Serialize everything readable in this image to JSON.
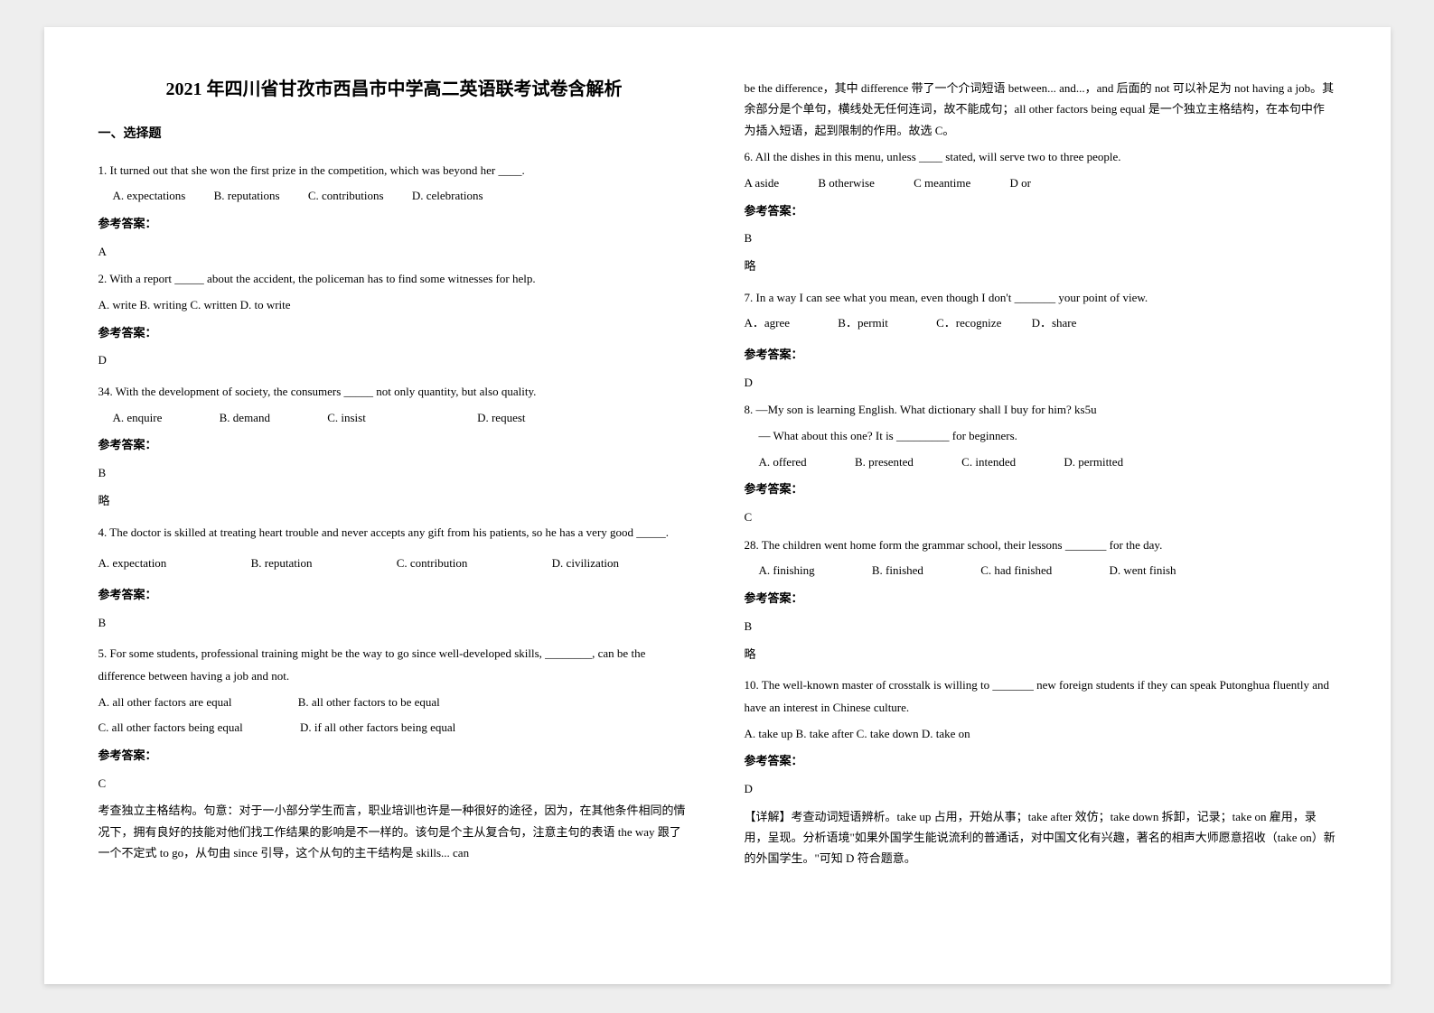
{
  "title": "2021 年四川省甘孜市西昌市中学高二英语联考试卷含解析",
  "section1": "一、选择题",
  "q1": {
    "text": "1. It turned out that she won the first prize in the competition, which was beyond her ____.",
    "A": "A. expectations",
    "B": "B. reputations",
    "C": "C. contributions",
    "D": "D. celebrations",
    "ref": "参考答案：",
    "ans": "A"
  },
  "q2": {
    "text": "2. With a report _____ about the accident, the policeman has to find some witnesses for help.",
    "opts": "A. write   B. writing   C. written   D. to write",
    "ref": "参考答案：",
    "ans": "D"
  },
  "q3": {
    "text": "34. With the development of society, the consumers _____ not only quantity, but also quality.",
    "A": "A. enquire",
    "B": "B. demand",
    "C": "C. insist",
    "D": "D. request",
    "ref": "参考答案：",
    "ans": "B",
    "note": "略"
  },
  "q4": {
    "text": "4. The doctor is skilled at treating heart trouble and never accepts any gift from his patients, so he has a very good _____.",
    "A": "A. expectation",
    "B": "B. reputation",
    "C": "C. contribution",
    "D": "D. civilization",
    "ref": "参考答案：",
    "ans": "B"
  },
  "q5": {
    "text": "5. For some students, professional training might be the way to go since well-developed skills, ________, can be the difference between having a job and not.",
    "A": "A. all other factors are equal",
    "B": "B. all other factors to be equal",
    "C": "C. all other factors being equal",
    "D": "D. if all other factors being equal",
    "ref": "参考答案：",
    "ans": "C",
    "exp": "考查独立主格结构。句意：对于一小部分学生而言，职业培训也许是一种很好的途径，因为，在其他条件相同的情况下，拥有良好的技能对他们找工作结果的影响是不一样的。该句是个主从复合句，注意主句的表语 the way 跟了一个不定式 to go，从句由 since 引导，这个从句的主干结构是 skills... can"
  },
  "col2top": "be the difference，其中 difference 带了一个介词短语 between... and...，and 后面的 not 可以补足为 not having a job。其余部分是个单句，横线处无任何连词，故不能成句；all other factors being equal 是一个独立主格结构，在本句中作为插入短语，起到限制的作用。故选 C。",
  "q6": {
    "text": "6. All the dishes in this menu, unless ____ stated, will serve two to three people.",
    "A": "A aside",
    "B": "B otherwise",
    "C": "C meantime",
    "D": "D or",
    "ref": "参考答案：",
    "ans": "B",
    "note": "略"
  },
  "q7": {
    "text": "7. In a way I can see what you mean, even though I don't _______ your point of view.",
    "A": "A．agree",
    "B": "B．permit",
    "C": "C．recognize",
    "D": "D．share",
    "ref": "参考答案：",
    "ans": "D"
  },
  "q8": {
    "text1": "8. —My son is learning English. What dictionary shall I buy for him? ks5u",
    "text2": "— What about this one? It is _________ for beginners.",
    "A": "A. offered",
    "B": "B. presented",
    "C": "C. intended",
    "D": "D. permitted",
    "ref": "参考答案：",
    "ans": "C"
  },
  "q9": {
    "text": "28. The children went home form the grammar school, their lessons _______ for the day.",
    "A": "A. finishing",
    "B": "B. finished",
    "C": "C. had finished",
    "D": "D. went finish",
    "ref": "参考答案：",
    "ans": "B",
    "note": "略"
  },
  "q10": {
    "text": "10. The well-known master of crosstalk is willing to _______ new foreign students if they can speak Putonghua fluently and have an interest in Chinese culture.",
    "opts": "A. take up    B. take after    C. take down    D. take on",
    "ref": "参考答案：",
    "ans": "D",
    "exp": "【详解】考查动词短语辨析。take up 占用，开始从事；take after 效仿；take down 拆卸，记录；take on 雇用，录用，呈现。分析语境\"如果外国学生能说流利的普通话，对中国文化有兴趣，著名的相声大师愿意招收（take on）新的外国学生。\"可知 D 符合题意。"
  }
}
